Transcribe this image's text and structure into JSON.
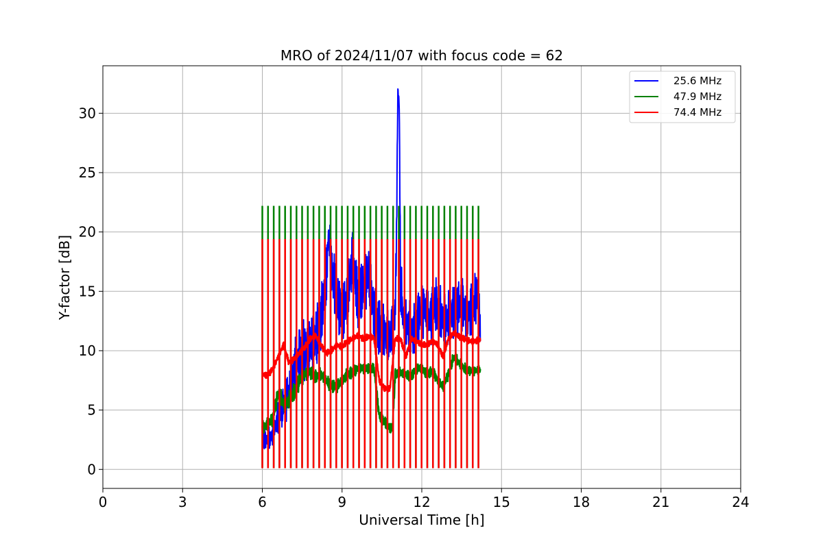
{
  "chart_data": {
    "type": "line",
    "title": "MRO of 2024/11/07 with focus code = 62",
    "xlabel": "Universal Time [h]",
    "ylabel": "Y-factor [dB]",
    "xlim": [
      0,
      24
    ],
    "ylim": [
      -1.6,
      34
    ],
    "xticks": [
      "0",
      "3",
      "6",
      "9",
      "12",
      "15",
      "18",
      "21",
      "24"
    ],
    "yticks": [
      "0",
      "5",
      "10",
      "15",
      "20",
      "25",
      "30"
    ],
    "grid": true,
    "legend_position": "top-right",
    "calibration": {
      "period_hours": 0.214,
      "count": 39,
      "start_hour": 6.0,
      "peak_values": {
        "47.9 MHz": 22.2,
        "74.4 MHz": 19.4
      },
      "low_value": 0.1
    },
    "series": [
      {
        "name": "25.6 MHz",
        "color": "#0000ff",
        "x": [
          6.0,
          6.2,
          6.4,
          6.6,
          6.8,
          7.0,
          7.2,
          7.4,
          7.6,
          7.8,
          8.0,
          8.2,
          8.4,
          8.5,
          8.6,
          8.8,
          9.0,
          9.2,
          9.4,
          9.6,
          9.8,
          10.0,
          10.2,
          10.4,
          10.6,
          10.8,
          11.0,
          11.05,
          11.1,
          11.15,
          11.2,
          11.3,
          11.5,
          11.7,
          11.9,
          12.1,
          12.3,
          12.5,
          12.7,
          12.9,
          13.1,
          13.3,
          13.5,
          13.7,
          13.9,
          14.1,
          14.2
        ],
        "y": [
          2.8,
          2.4,
          3.0,
          4.5,
          5.5,
          6.5,
          8.5,
          9.5,
          10.0,
          10.5,
          11.0,
          12.5,
          16.0,
          20.0,
          17.0,
          14.5,
          13.0,
          14.5,
          18.0,
          14.0,
          15.5,
          16.5,
          13.0,
          12.0,
          11.5,
          11.0,
          13.0,
          20.0,
          32.0,
          31.0,
          16.0,
          12.5,
          12.0,
          11.5,
          13.0,
          13.5,
          12.5,
          14.0,
          13.0,
          12.5,
          13.0,
          13.5,
          14.0,
          13.0,
          13.5,
          15.0,
          12.0
        ],
        "band": [
          1.2,
          1.0,
          1.2,
          1.6,
          1.8,
          2.2,
          2.5,
          2.8,
          3.0,
          3.0,
          3.0,
          3.0,
          3.5,
          1.5,
          3.0,
          3.0,
          3.0,
          3.0,
          3.0,
          3.0,
          3.0,
          3.0,
          3.0,
          3.0,
          2.5,
          2.5,
          2.5,
          2.0,
          0.6,
          1.2,
          3.0,
          2.5,
          2.5,
          2.5,
          2.5,
          2.5,
          2.5,
          2.5,
          2.5,
          2.5,
          2.5,
          2.5,
          2.5,
          2.5,
          2.5,
          2.5,
          1.5
        ]
      },
      {
        "name": "47.9 MHz",
        "color": "#008000",
        "x": [
          6.0,
          6.2,
          6.4,
          6.6,
          6.8,
          7.0,
          7.2,
          7.4,
          7.6,
          7.8,
          8.0,
          8.2,
          8.4,
          8.6,
          8.8,
          9.0,
          9.2,
          9.4,
          9.6,
          9.8,
          10.0,
          10.2,
          10.4,
          10.6,
          10.8,
          10.9,
          11.0,
          11.2,
          11.4,
          11.6,
          11.8,
          12.0,
          12.2,
          12.4,
          12.6,
          12.8,
          13.0,
          13.2,
          13.4,
          13.6,
          13.8,
          14.0,
          14.2
        ],
        "y": [
          3.5,
          3.8,
          4.3,
          6.5,
          5.5,
          5.8,
          6.5,
          7.5,
          8.0,
          8.2,
          7.8,
          8.0,
          7.5,
          7.0,
          7.0,
          7.5,
          8.0,
          8.2,
          8.5,
          8.5,
          8.5,
          8.5,
          4.5,
          4.0,
          3.5,
          3.5,
          8.0,
          8.2,
          8.0,
          7.8,
          8.5,
          8.5,
          8.0,
          8.3,
          7.5,
          7.0,
          8.0,
          9.5,
          9.0,
          8.5,
          8.3,
          8.3,
          8.4
        ],
        "band": [
          0.6,
          0.6,
          0.6,
          0.8,
          0.8,
          0.8,
          0.8,
          0.8,
          0.6,
          0.6,
          0.6,
          0.6,
          0.6,
          0.6,
          0.6,
          0.6,
          0.6,
          0.6,
          0.5,
          0.5,
          0.5,
          0.5,
          0.6,
          0.6,
          0.5,
          0.5,
          0.6,
          0.5,
          0.5,
          0.5,
          0.5,
          0.5,
          0.5,
          0.5,
          0.5,
          0.5,
          0.5,
          0.5,
          0.5,
          0.5,
          0.4,
          0.4,
          0.4
        ]
      },
      {
        "name": "74.4 MHz",
        "color": "#ff0000",
        "x": [
          6.0,
          6.2,
          6.4,
          6.6,
          6.8,
          7.0,
          7.2,
          7.4,
          7.6,
          7.8,
          8.0,
          8.2,
          8.4,
          8.6,
          8.8,
          9.0,
          9.2,
          9.4,
          9.6,
          9.8,
          10.0,
          10.2,
          10.4,
          10.6,
          10.8,
          11.0,
          11.2,
          11.4,
          11.6,
          11.8,
          12.0,
          12.2,
          12.4,
          12.6,
          12.8,
          13.0,
          13.2,
          13.4,
          13.6,
          13.8,
          14.0,
          14.2
        ],
        "y": [
          8.0,
          7.9,
          8.5,
          9.5,
          10.5,
          9.0,
          9.3,
          9.8,
          10.3,
          11.0,
          11.3,
          10.5,
          9.8,
          10.0,
          10.5,
          10.3,
          10.8,
          11.0,
          11.3,
          11.0,
          11.2,
          11.1,
          7.5,
          6.8,
          6.8,
          11.0,
          11.0,
          9.5,
          11.0,
          10.8,
          10.5,
          10.5,
          10.8,
          10.5,
          9.5,
          11.0,
          11.5,
          11.2,
          11.0,
          10.8,
          10.8,
          10.9
        ],
        "band": [
          0.3,
          0.3,
          0.3,
          0.3,
          0.3,
          0.3,
          0.3,
          0.3,
          0.3,
          0.3,
          0.3,
          0.3,
          0.3,
          0.3,
          0.3,
          0.3,
          0.3,
          0.3,
          0.3,
          0.3,
          0.3,
          0.3,
          0.3,
          0.3,
          0.3,
          0.3,
          0.3,
          0.3,
          0.3,
          0.3,
          0.3,
          0.3,
          0.3,
          0.3,
          0.3,
          0.3,
          0.3,
          0.3,
          0.3,
          0.3,
          0.3,
          0.3
        ]
      }
    ]
  }
}
